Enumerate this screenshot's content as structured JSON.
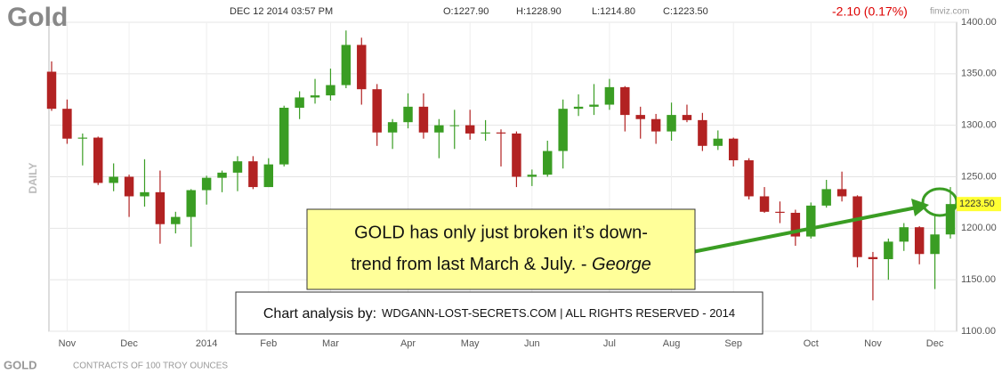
{
  "chart_data": {
    "type": "candlestick",
    "title": "Gold",
    "timestamp": "DEC 12 2014 03:57 PM",
    "ohlc_labels": [
      "O:1227.90",
      "H:1228.90",
      "L:1214.80",
      "C:1223.50"
    ],
    "change_label": "-2.10 (0.17%)",
    "source": "finviz.com",
    "side_label": "DAILY",
    "symbol": "GOLD",
    "contract_note": "CONTRACTS OF 100 TROY OUNCES",
    "last_price": {
      "value": 1223.5,
      "label": "1223.50"
    },
    "annotation": {
      "line1": "GOLD has only just broken it’s down-",
      "line2": "trend from last March & July. - ",
      "author": "George"
    },
    "credit": {
      "lead": "Chart analysis by:",
      "rest": "WDGANN-LOST-SECRETS.COM | ALL RIGHTS RESERVED - 2014"
    },
    "categories": [
      null,
      "Nov",
      null,
      null,
      null,
      "Dec",
      null,
      null,
      null,
      null,
      "2014",
      null,
      null,
      null,
      "Feb",
      null,
      null,
      null,
      "Mar",
      null,
      null,
      null,
      null,
      "Apr",
      null,
      null,
      null,
      "May",
      null,
      null,
      null,
      "Jun",
      null,
      null,
      null,
      null,
      "Jul",
      null,
      null,
      null,
      "Aug",
      null,
      null,
      null,
      "Sep",
      null,
      null,
      null,
      null,
      "Oct",
      null,
      null,
      null,
      "Nov",
      null,
      null,
      null,
      "Dec",
      null
    ],
    "open": [
      1352,
      1316,
      1287,
      1288,
      1244,
      1250,
      1231,
      1235,
      1204,
      1211,
      1237,
      1249,
      1254,
      1265,
      1240,
      1262,
      1317,
      1327,
      1329,
      1339,
      1378,
      1335,
      1293,
      1303,
      1318,
      1293,
      1300,
      1300,
      1292,
      1293,
      1292,
      1250,
      1252,
      1275,
      1316,
      1318,
      1320,
      1337,
      1310,
      1306,
      1294,
      1310,
      1305,
      1280,
      1287,
      1266,
      1231,
      1216,
      1215,
      1192,
      1222,
      1238,
      1231,
      1172,
      1170,
      1187,
      1201,
      1175,
      1194
    ],
    "high": [
      1362,
      1325,
      1292,
      1289,
      1263,
      1252,
      1267,
      1256,
      1216,
      1238,
      1251,
      1256,
      1270,
      1270,
      1268,
      1319,
      1333,
      1345,
      1355,
      1392,
      1385,
      1340,
      1306,
      1331,
      1331,
      1306,
      1315,
      1315,
      1305,
      1296,
      1294,
      1257,
      1285,
      1325,
      1330,
      1340,
      1345,
      1338,
      1318,
      1311,
      1322,
      1320,
      1312,
      1295,
      1288,
      1268,
      1240,
      1226,
      1218,
      1225,
      1247,
      1255,
      1232,
      1177,
      1190,
      1205,
      1202,
      1214,
      1240
    ],
    "low": [
      1314,
      1282,
      1261,
      1242,
      1236,
      1211,
      1221,
      1185,
      1195,
      1182,
      1223,
      1235,
      1236,
      1238,
      1240,
      1260,
      1306,
      1321,
      1324,
      1336,
      1320,
      1280,
      1277,
      1297,
      1287,
      1268,
      1277,
      1286,
      1285,
      1260,
      1240,
      1241,
      1250,
      1258,
      1309,
      1310,
      1315,
      1294,
      1287,
      1282,
      1285,
      1303,
      1275,
      1276,
      1260,
      1228,
      1215,
      1205,
      1183,
      1190,
      1220,
      1226,
      1162,
      1130,
      1150,
      1178,
      1165,
      1141,
      1190
    ],
    "close": [
      1316,
      1287,
      1288,
      1244,
      1250,
      1231,
      1235,
      1204,
      1211,
      1237,
      1249,
      1254,
      1265,
      1240,
      1262,
      1317,
      1327,
      1329,
      1339,
      1378,
      1335,
      1293,
      1303,
      1318,
      1293,
      1300,
      1300,
      1292,
      1293,
      1292,
      1250,
      1252,
      1275,
      1316,
      1318,
      1320,
      1337,
      1310,
      1306,
      1294,
      1310,
      1305,
      1280,
      1287,
      1266,
      1231,
      1216,
      1215,
      1192,
      1222,
      1238,
      1231,
      1172,
      1170,
      1187,
      1201,
      1175,
      1194,
      1223.5
    ],
    "up_color": "#3a9d23",
    "down_color": "#b22222",
    "ylim": [
      1100,
      1400
    ],
    "yticks": [
      {
        "value": 1100,
        "label": "1100.00"
      },
      {
        "value": 1150,
        "label": "1150.00"
      },
      {
        "value": 1200,
        "label": "1200.00"
      },
      {
        "value": 1250,
        "label": "1250.00"
      },
      {
        "value": 1300,
        "label": "1300.00"
      },
      {
        "value": 1350,
        "label": "1350.00"
      },
      {
        "value": 1400,
        "label": "1400.00"
      }
    ],
    "grid": true
  }
}
